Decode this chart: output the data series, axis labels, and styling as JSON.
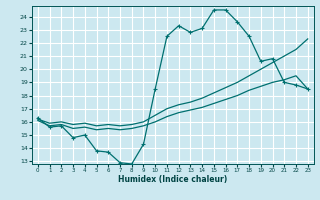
{
  "xlabel": "Humidex (Indice chaleur)",
  "bg_color": "#cce8f0",
  "grid_color": "#ffffff",
  "line_color": "#007070",
  "xlim": [
    -0.5,
    23.5
  ],
  "ylim": [
    12.8,
    24.8
  ],
  "yticks": [
    13,
    14,
    15,
    16,
    17,
    18,
    19,
    20,
    21,
    22,
    23,
    24
  ],
  "xticks": [
    0,
    1,
    2,
    3,
    4,
    5,
    6,
    7,
    8,
    9,
    10,
    11,
    12,
    13,
    14,
    15,
    16,
    17,
    18,
    19,
    20,
    21,
    22,
    23
  ],
  "line1_x": [
    0,
    1,
    2,
    3,
    4,
    5,
    6,
    7,
    8,
    9,
    10,
    11,
    12,
    13,
    14,
    15,
    16,
    17,
    18,
    19,
    20,
    21,
    22,
    23
  ],
  "line1_y": [
    16.3,
    15.6,
    15.7,
    14.8,
    15.0,
    13.8,
    13.7,
    12.9,
    12.8,
    14.3,
    18.5,
    22.5,
    23.3,
    22.8,
    23.1,
    24.5,
    24.5,
    23.6,
    22.5,
    20.6,
    20.8,
    19.0,
    18.8,
    18.5
  ],
  "line2_x": [
    0,
    1,
    2,
    3,
    4,
    5,
    6,
    7,
    8,
    9,
    10,
    11,
    12,
    13,
    14,
    15,
    16,
    17,
    18,
    19,
    20,
    21,
    22,
    23
  ],
  "line2_y": [
    16.2,
    15.9,
    16.0,
    15.8,
    15.9,
    15.7,
    15.8,
    15.7,
    15.8,
    16.0,
    16.5,
    17.0,
    17.3,
    17.5,
    17.8,
    18.2,
    18.6,
    19.0,
    19.5,
    20.0,
    20.5,
    21.0,
    21.5,
    22.3
  ],
  "line3_x": [
    0,
    1,
    2,
    3,
    4,
    5,
    6,
    7,
    8,
    9,
    10,
    11,
    12,
    13,
    14,
    15,
    16,
    17,
    18,
    19,
    20,
    21,
    22,
    23
  ],
  "line3_y": [
    16.1,
    15.7,
    15.8,
    15.5,
    15.6,
    15.4,
    15.5,
    15.4,
    15.5,
    15.7,
    16.0,
    16.4,
    16.7,
    16.9,
    17.1,
    17.4,
    17.7,
    18.0,
    18.4,
    18.7,
    19.0,
    19.2,
    19.5,
    18.5
  ]
}
